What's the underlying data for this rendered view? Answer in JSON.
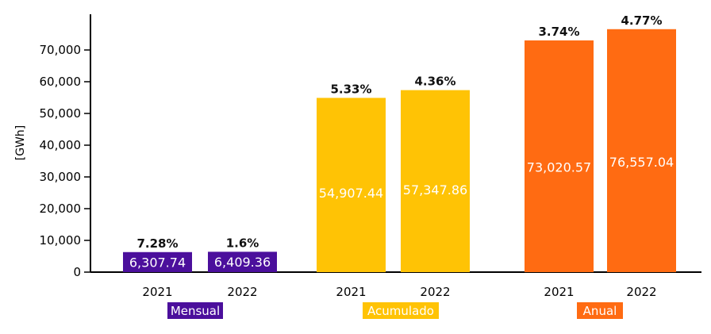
{
  "chart_data": {
    "type": "bar",
    "ylabel": "[GWh]",
    "ylim": [
      0,
      80000
    ],
    "yticks": [
      0,
      10000,
      20000,
      30000,
      40000,
      50000,
      60000,
      70000
    ],
    "ytick_labels": [
      "0",
      "10,000",
      "20,000",
      "30,000",
      "40,000",
      "50,000",
      "60,000",
      "70,000"
    ],
    "groups": [
      {
        "name": "Mensual",
        "color": "#4b0f9c",
        "bars": [
          {
            "year": "2021",
            "value": 6307.74,
            "value_label": "6,307.74",
            "pct_label": "7.28%"
          },
          {
            "year": "2022",
            "value": 6409.36,
            "value_label": "6,409.36",
            "pct_label": "1.6%"
          }
        ]
      },
      {
        "name": "Acumulado",
        "color": "#ffc305",
        "bars": [
          {
            "year": "2021",
            "value": 54907.44,
            "value_label": "54,907.44",
            "pct_label": "5.33%"
          },
          {
            "year": "2022",
            "value": 57347.86,
            "value_label": "57,347.86",
            "pct_label": "4.36%"
          }
        ]
      },
      {
        "name": "Anual",
        "color": "#ff6b12",
        "bars": [
          {
            "year": "2021",
            "value": 73020.57,
            "value_label": "73,020.57",
            "pct_label": "3.74%"
          },
          {
            "year": "2022",
            "value": 76557.04,
            "value_label": "76,557.04",
            "pct_label": "4.77%"
          }
        ]
      }
    ]
  }
}
